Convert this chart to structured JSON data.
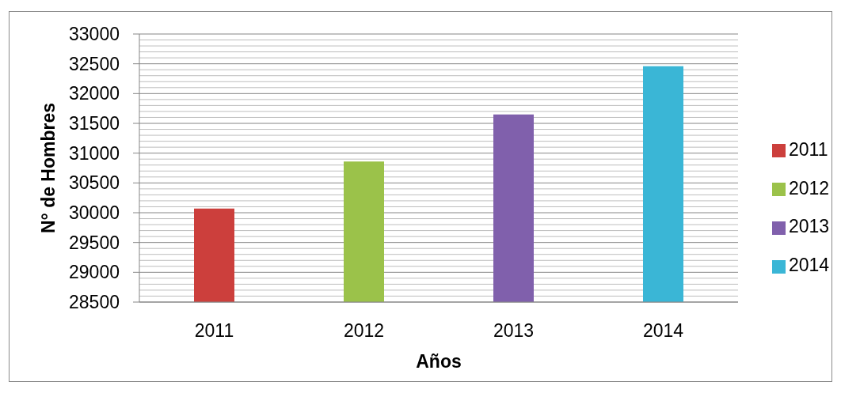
{
  "chart_data": {
    "type": "bar",
    "categories": [
      "2011",
      "2012",
      "2013",
      "2014"
    ],
    "stacked": true,
    "series": [
      {
        "name": "2011",
        "color": "#cc3f3c",
        "values": [
          30070,
          null,
          null,
          null
        ]
      },
      {
        "name": "2012",
        "color": "#9bc24a",
        "values": [
          null,
          30860,
          null,
          null
        ]
      },
      {
        "name": "2013",
        "color": "#8060ac",
        "values": [
          null,
          null,
          31650,
          null
        ]
      },
      {
        "name": "2014",
        "color": "#3ab6d6",
        "values": [
          null,
          null,
          null,
          32460
        ]
      }
    ],
    "xlabel": "Años",
    "ylabel": "N° de Hombres",
    "ylim": [
      28500,
      33000
    ],
    "yticks": [
      28500,
      {
        "value": 28600,
        "label": null
      },
      {
        "value": 28700,
        "label": null
      },
      {
        "value": 28800,
        "label": null
      },
      {
        "value": 28900,
        "label": null
      },
      29000,
      {
        "value": 29100,
        "label": null
      },
      {
        "value": 29200,
        "label": null
      },
      {
        "value": 29300,
        "label": null
      },
      {
        "value": 29400,
        "label": null
      },
      29500,
      {
        "value": 29600,
        "label": null
      },
      {
        "value": 29700,
        "label": null
      },
      {
        "value": 29800,
        "label": null
      },
      {
        "value": 29900,
        "label": null
      },
      30000,
      {
        "value": 30100,
        "label": null
      },
      {
        "value": 30200,
        "label": null
      },
      {
        "value": 30300,
        "label": null
      },
      {
        "value": 30400,
        "label": null
      },
      30500,
      {
        "value": 30600,
        "label": null
      },
      {
        "value": 30700,
        "label": null
      },
      {
        "value": 30800,
        "label": null
      },
      {
        "value": 30900,
        "label": null
      },
      31000,
      {
        "value": 31100,
        "label": null
      },
      {
        "value": 31200,
        "label": null
      },
      {
        "value": 31300,
        "label": null
      },
      {
        "value": 31400,
        "label": null
      },
      31500,
      {
        "value": 31600,
        "label": null
      },
      {
        "value": 31700,
        "label": null
      },
      {
        "value": 31800,
        "label": null
      },
      {
        "value": 31900,
        "label": null
      },
      32000,
      {
        "value": 32100,
        "label": null
      },
      {
        "value": 32200,
        "label": null
      },
      {
        "value": 32300,
        "label": null
      },
      {
        "value": 32400,
        "label": null
      },
      32500,
      {
        "value": 32600,
        "label": null
      },
      {
        "value": 32700,
        "label": null
      },
      {
        "value": 32800,
        "label": null
      },
      {
        "value": 32900,
        "label": null
      },
      33000
    ],
    "grid": "y",
    "legend": "right"
  }
}
